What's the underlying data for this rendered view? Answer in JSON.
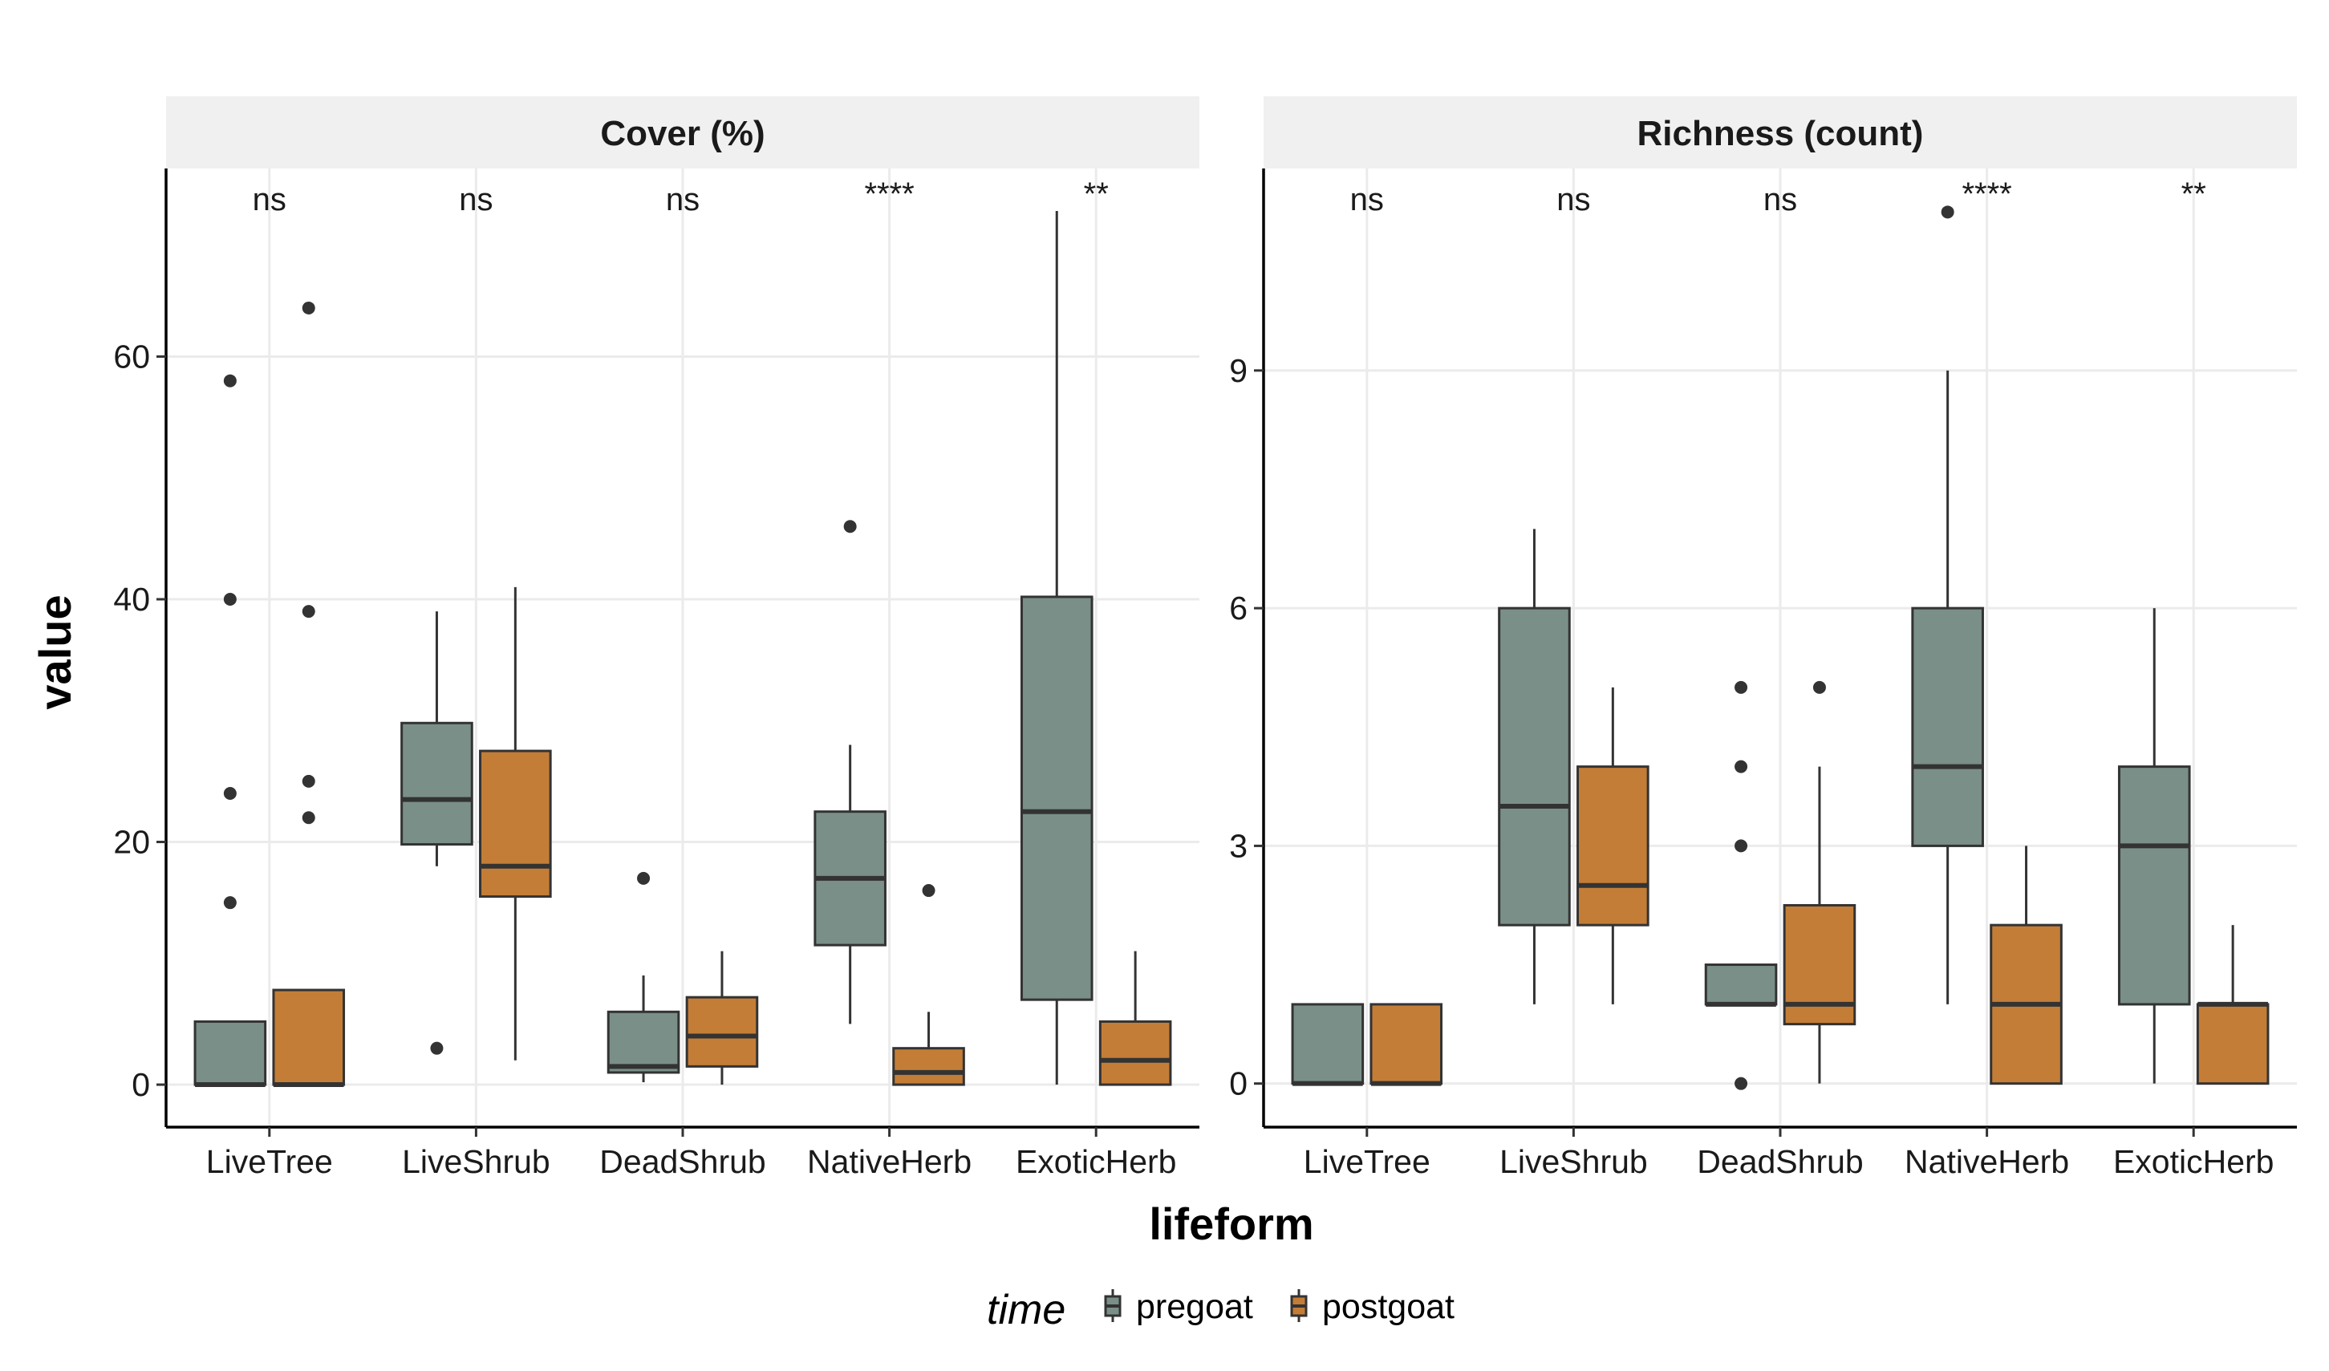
{
  "x_axis_title": "lifeform",
  "y_axis_title": "value",
  "colors": {
    "pregoat": "#7a8f88",
    "postgoat": "#c47d37",
    "outline": "#333333"
  },
  "legend": {
    "title": "time",
    "items": [
      {
        "label": "pregoat",
        "color": "#7a8f88"
      },
      {
        "label": "postgoat",
        "color": "#c47d37"
      }
    ]
  },
  "chart_data": [
    {
      "type": "box",
      "title": "Cover (%)",
      "categories": [
        "LiveTree",
        "LiveShrub",
        "DeadShrub",
        "NativeHerb",
        "ExoticHerb"
      ],
      "ylim": [
        -3.5,
        75.5
      ],
      "yticks": [
        0,
        20,
        40,
        60
      ],
      "significance": [
        "ns",
        "ns",
        "ns",
        "****",
        "**"
      ],
      "series": [
        {
          "name": "pregoat",
          "boxes": [
            {
              "min": 0,
              "q1": 0,
              "median": 0,
              "q3": 5.2,
              "max": 5.2,
              "outliers": [
                15,
                24,
                40,
                58
              ]
            },
            {
              "min": 18,
              "q1": 19.8,
              "median": 23.5,
              "q3": 29.8,
              "max": 39,
              "outliers": [
                3
              ]
            },
            {
              "min": 0.2,
              "q1": 1,
              "median": 1.5,
              "q3": 6,
              "max": 9,
              "outliers": [
                17
              ]
            },
            {
              "min": 5,
              "q1": 11.5,
              "median": 17,
              "q3": 22.5,
              "max": 28,
              "outliers": [
                46
              ]
            },
            {
              "min": 0,
              "q1": 7,
              "median": 22.5,
              "q3": 40.2,
              "max": 72,
              "outliers": []
            }
          ]
        },
        {
          "name": "postgoat",
          "boxes": [
            {
              "min": 0,
              "q1": 0,
              "median": 0,
              "q3": 7.8,
              "max": 7.8,
              "outliers": [
                22,
                25,
                39,
                64
              ]
            },
            {
              "min": 2,
              "q1": 15.5,
              "median": 18,
              "q3": 27.5,
              "max": 41,
              "outliers": []
            },
            {
              "min": 0,
              "q1": 1.5,
              "median": 4,
              "q3": 7.2,
              "max": 11,
              "outliers": []
            },
            {
              "min": 0,
              "q1": 0,
              "median": 1,
              "q3": 3,
              "max": 6,
              "outliers": [
                16
              ]
            },
            {
              "min": 0,
              "q1": 0,
              "median": 2,
              "q3": 5.2,
              "max": 11,
              "outliers": []
            }
          ]
        }
      ]
    },
    {
      "type": "box",
      "title": "Richness (count)",
      "categories": [
        "LiveTree",
        "LiveShrub",
        "DeadShrub",
        "NativeHerb",
        "ExoticHerb"
      ],
      "ylim": [
        -0.55,
        11.55
      ],
      "yticks": [
        0,
        3,
        6,
        9
      ],
      "significance": [
        "ns",
        "ns",
        "ns",
        "****",
        "**"
      ],
      "series": [
        {
          "name": "pregoat",
          "boxes": [
            {
              "min": 0,
              "q1": 0,
              "median": 0,
              "q3": 1,
              "max": 1,
              "outliers": []
            },
            {
              "min": 1,
              "q1": 2,
              "median": 3.5,
              "q3": 6,
              "max": 7,
              "outliers": []
            },
            {
              "min": 1,
              "q1": 1,
              "median": 1,
              "q3": 1.5,
              "max": 1.5,
              "outliers": [
                0,
                3,
                4,
                5
              ]
            },
            {
              "min": 1,
              "q1": 3,
              "median": 4,
              "q3": 6,
              "max": 9,
              "outliers": [
                11
              ]
            },
            {
              "min": 0,
              "q1": 1,
              "median": 3,
              "q3": 4,
              "max": 6,
              "outliers": []
            }
          ]
        },
        {
          "name": "postgoat",
          "boxes": [
            {
              "min": 0,
              "q1": 0,
              "median": 0,
              "q3": 1,
              "max": 1,
              "outliers": []
            },
            {
              "min": 1,
              "q1": 2,
              "median": 2.5,
              "q3": 4,
              "max": 5,
              "outliers": []
            },
            {
              "min": 0,
              "q1": 0.75,
              "median": 1,
              "q3": 2.25,
              "max": 4,
              "outliers": [
                5
              ]
            },
            {
              "min": 0,
              "q1": 0,
              "median": 1,
              "q3": 2,
              "max": 3,
              "outliers": []
            },
            {
              "min": 0,
              "q1": 0,
              "median": 1,
              "q3": 1,
              "max": 2,
              "outliers": []
            }
          ]
        }
      ]
    }
  ]
}
